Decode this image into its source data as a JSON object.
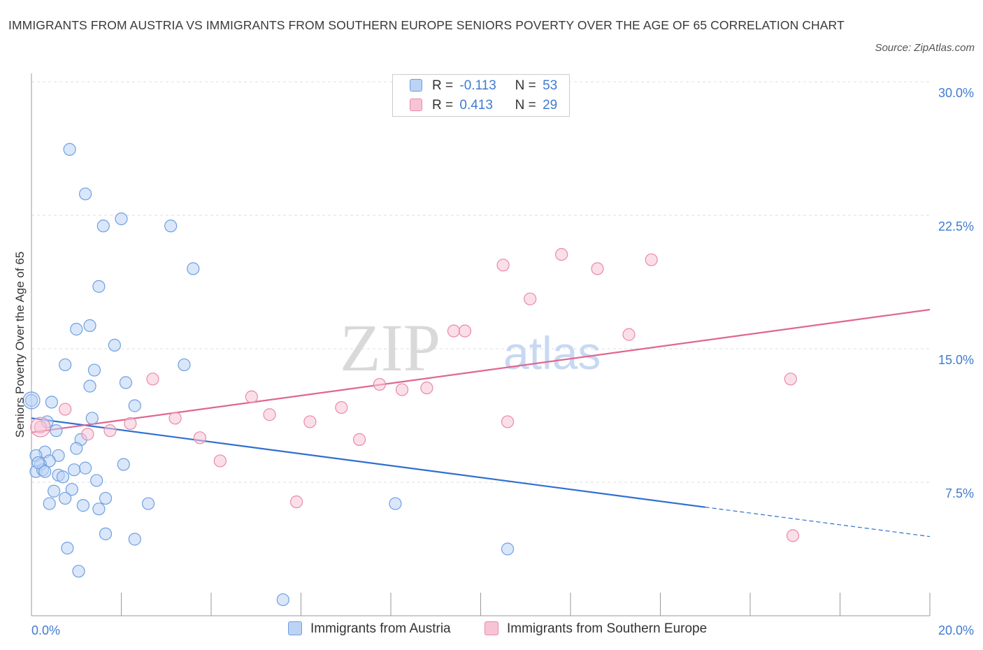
{
  "title": "IMMIGRANTS FROM AUSTRIA VS IMMIGRANTS FROM SOUTHERN EUROPE SENIORS POVERTY OVER THE AGE OF 65 CORRELATION CHART",
  "source": "Source: ZipAtlas.com",
  "watermark": {
    "zip": "ZIP",
    "atlas": "atlas"
  },
  "legend": [
    {
      "r_label": "R =",
      "r_value": "-0.113",
      "n_label": "N =",
      "n_value": "53"
    },
    {
      "r_label": "R =",
      "r_value": "0.413",
      "n_label": "N =",
      "n_value": "29"
    }
  ],
  "colors": {
    "blue_fill": "#bcd3f5",
    "blue_stroke": "#6f9fe0",
    "blue_line": "#2f6fd0",
    "pink_fill": "#f8c4d5",
    "pink_stroke": "#e88aa8",
    "pink_line": "#e06690",
    "tick": "#3f7bd1",
    "grid": "#dddddd"
  },
  "chart_data": {
    "type": "scatter",
    "title": "IMMIGRANTS FROM AUSTRIA VS IMMIGRANTS FROM SOUTHERN EUROPE SENIORS POVERTY OVER THE AGE OF 65 CORRELATION CHART",
    "xlabel": "",
    "ylabel": "Seniors Poverty Over the Age of 65",
    "xlim": [
      0,
      20
    ],
    "ylim": [
      0,
      30
    ],
    "x_tick_labels": [
      "0.0%",
      "20.0%"
    ],
    "y_ticks": [
      7.5,
      15.0,
      22.5,
      30.0
    ],
    "y_tick_labels": [
      "7.5%",
      "15.0%",
      "22.5%",
      "30.0%"
    ],
    "grid": true,
    "legend_position": "top-center",
    "series": [
      {
        "name": "Immigrants from Austria",
        "R": -0.113,
        "N": 53,
        "trend": {
          "x0": 0,
          "y0": 11.1,
          "x1": 15.0,
          "y1": 6.1,
          "dash_to_x": 20.0,
          "dash_to_y": 4.45
        },
        "points": [
          [
            0.85,
            26.2
          ],
          [
            1.2,
            23.7
          ],
          [
            1.6,
            21.9
          ],
          [
            2.0,
            22.3
          ],
          [
            3.1,
            21.9
          ],
          [
            3.6,
            19.5
          ],
          [
            1.5,
            18.5
          ],
          [
            1.3,
            16.3
          ],
          [
            1.0,
            16.1
          ],
          [
            1.85,
            15.2
          ],
          [
            0.75,
            14.1
          ],
          [
            1.4,
            13.8
          ],
          [
            3.4,
            14.1
          ],
          [
            1.3,
            12.9
          ],
          [
            2.1,
            13.1
          ],
          [
            0.0,
            12.1
          ],
          [
            0.45,
            12.0
          ],
          [
            2.3,
            11.8
          ],
          [
            1.35,
            11.1
          ],
          [
            0.35,
            10.9
          ],
          [
            0.55,
            10.4
          ],
          [
            1.1,
            9.9
          ],
          [
            0.3,
            9.2
          ],
          [
            0.1,
            9.0
          ],
          [
            0.6,
            9.0
          ],
          [
            0.4,
            8.7
          ],
          [
            1.0,
            9.4
          ],
          [
            0.2,
            8.5
          ],
          [
            2.05,
            8.5
          ],
          [
            1.2,
            8.3
          ],
          [
            0.95,
            8.2
          ],
          [
            0.1,
            8.1
          ],
          [
            0.25,
            8.2
          ],
          [
            0.6,
            7.9
          ],
          [
            0.7,
            7.8
          ],
          [
            1.45,
            7.6
          ],
          [
            0.9,
            7.1
          ],
          [
            0.5,
            7.0
          ],
          [
            0.75,
            6.6
          ],
          [
            1.65,
            6.6
          ],
          [
            0.4,
            6.3
          ],
          [
            1.15,
            6.2
          ],
          [
            2.6,
            6.3
          ],
          [
            8.1,
            6.3
          ],
          [
            1.5,
            6.0
          ],
          [
            1.65,
            4.6
          ],
          [
            2.3,
            4.3
          ],
          [
            0.8,
            3.8
          ],
          [
            10.6,
            3.75
          ],
          [
            1.05,
            2.5
          ],
          [
            5.6,
            0.9
          ],
          [
            0.15,
            8.6
          ],
          [
            0.3,
            8.1
          ]
        ]
      },
      {
        "name": "Immigrants from Southern Europe",
        "R": 0.413,
        "N": 29,
        "trend": {
          "x0": 0,
          "y0": 10.3,
          "x1": 20.0,
          "y1": 17.2
        },
        "points": [
          [
            11.8,
            20.3
          ],
          [
            13.8,
            20.0
          ],
          [
            10.5,
            19.7
          ],
          [
            12.6,
            19.5
          ],
          [
            11.1,
            17.8
          ],
          [
            9.4,
            16.0
          ],
          [
            9.65,
            16.0
          ],
          [
            13.3,
            15.8
          ],
          [
            16.9,
            13.3
          ],
          [
            2.7,
            13.3
          ],
          [
            7.75,
            13.0
          ],
          [
            8.25,
            12.7
          ],
          [
            8.8,
            12.8
          ],
          [
            4.9,
            12.3
          ],
          [
            6.9,
            11.7
          ],
          [
            0.75,
            11.6
          ],
          [
            5.3,
            11.3
          ],
          [
            3.2,
            11.1
          ],
          [
            6.2,
            10.9
          ],
          [
            10.6,
            10.9
          ],
          [
            2.2,
            10.8
          ],
          [
            1.75,
            10.4
          ],
          [
            1.25,
            10.2
          ],
          [
            3.75,
            10.0
          ],
          [
            7.3,
            9.9
          ],
          [
            4.2,
            8.7
          ],
          [
            5.9,
            6.4
          ],
          [
            16.95,
            4.5
          ],
          [
            0.2,
            10.6
          ]
        ]
      }
    ]
  }
}
